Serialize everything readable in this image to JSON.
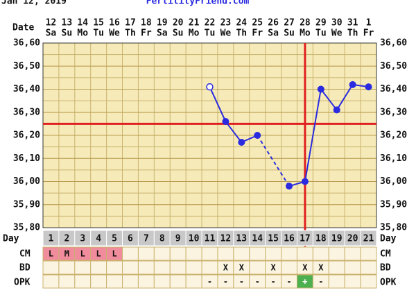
{
  "header": {
    "date": "Jan 12, 2019",
    "site": "FertilityFriend.com"
  },
  "chart_data": {
    "type": "line",
    "date_label": "Date",
    "day_label": "Day",
    "cm_label": "CM",
    "bd_label": "BD",
    "opk_label": "OPK",
    "categories": [
      "12",
      "13",
      "14",
      "15",
      "16",
      "17",
      "18",
      "19",
      "20",
      "21",
      "22",
      "23",
      "24",
      "25",
      "26",
      "27",
      "28",
      "29",
      "30",
      "31",
      "1"
    ],
    "weekdays": [
      "Sa",
      "Su",
      "Mo",
      "Tu",
      "We",
      "Th",
      "Fr",
      "Sa",
      "Su",
      "Mo",
      "Tu",
      "We",
      "Th",
      "Fr",
      "Sa",
      "Su",
      "Mo",
      "Tu",
      "We",
      "Th",
      "Fr"
    ],
    "days": [
      1,
      2,
      3,
      4,
      5,
      6,
      7,
      8,
      9,
      10,
      11,
      12,
      13,
      14,
      15,
      16,
      17,
      18,
      19,
      20,
      21
    ],
    "values": [
      null,
      null,
      null,
      null,
      null,
      null,
      null,
      null,
      null,
      null,
      36.41,
      36.26,
      36.17,
      36.2,
      null,
      35.98,
      36.0,
      36.4,
      36.31,
      36.42,
      36.41
    ],
    "color": "#2a2ae0",
    "ylim": [
      35.8,
      36.6
    ],
    "yticks": [
      {
        "value": 35.8,
        "label": "35,80"
      },
      {
        "value": 35.9,
        "label": "35,90"
      },
      {
        "value": 36.0,
        "label": "36,00"
      },
      {
        "value": 36.1,
        "label": "36,10"
      },
      {
        "value": 36.2,
        "label": "36,20"
      },
      {
        "value": 36.3,
        "label": "36,30"
      },
      {
        "value": 36.4,
        "label": "36,40"
      },
      {
        "value": 36.5,
        "label": "36,50"
      },
      {
        "value": 36.6,
        "label": "36,60"
      }
    ],
    "grid": true,
    "coverline": 36.25,
    "ovulation_day": 17,
    "marker_color": "#e02020",
    "cm": [
      "L",
      "M",
      "L",
      "L",
      "L",
      null,
      null,
      null,
      null,
      null,
      null,
      null,
      null,
      null,
      null,
      null,
      null,
      null,
      null,
      null,
      null
    ],
    "bd": [
      null,
      null,
      null,
      null,
      null,
      null,
      null,
      null,
      null,
      null,
      null,
      "X",
      "X",
      null,
      "X",
      null,
      "X",
      "X",
      null,
      null,
      null
    ],
    "opk": [
      null,
      null,
      null,
      null,
      null,
      null,
      null,
      null,
      null,
      null,
      "-",
      "-",
      "-",
      "-",
      "-",
      "-",
      "+",
      "-",
      null,
      null,
      null
    ]
  }
}
